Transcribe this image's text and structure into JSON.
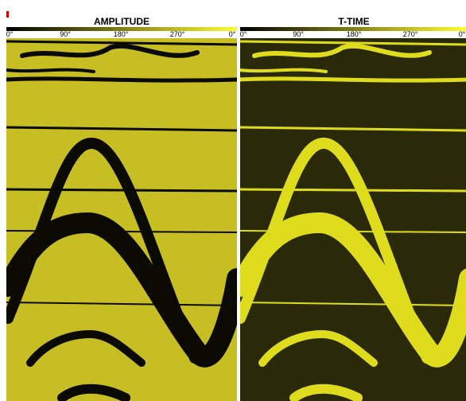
{
  "panels": [
    {
      "title": "AMPLITUDE",
      "ticks": [
        "0°",
        "90°",
        "180°",
        "270°",
        "0°"
      ]
    },
    {
      "title": "T-TIME",
      "ticks": [
        "0°",
        "90°",
        "180°",
        "270°",
        "0°"
      ]
    }
  ]
}
